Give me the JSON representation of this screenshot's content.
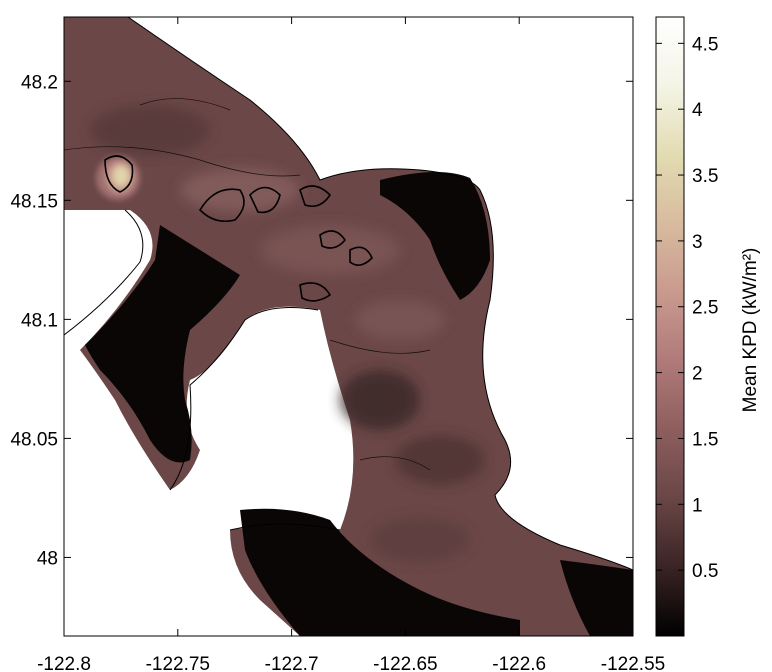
{
  "chart_data": {
    "type": "heatmap",
    "title": "",
    "xlabel": "",
    "ylabel": "",
    "xlim": [
      -122.8,
      -122.55
    ],
    "ylim": [
      47.967,
      48.227
    ],
    "x_ticks": [
      -122.8,
      -122.75,
      -122.7,
      -122.65,
      -122.6,
      -122.55
    ],
    "x_tick_labels": [
      "-122.8",
      "-122.75",
      "-122.7",
      "-122.65",
      "-122.6",
      "-122.55"
    ],
    "y_ticks": [
      48.0,
      48.05,
      48.1,
      48.15,
      48.2
    ],
    "y_tick_labels": [
      "48",
      "48.05",
      "48.1",
      "48.15",
      "48.2"
    ],
    "colorbar": {
      "label": "Mean KPD (kW/m²)",
      "range": [
        0,
        4.7
      ],
      "ticks": [
        0.5,
        1,
        1.5,
        2,
        2.5,
        3,
        3.5,
        4,
        4.5
      ],
      "tick_labels": [
        "0.5",
        "1",
        "1.5",
        "2",
        "2.5",
        "3",
        "3.5",
        "4",
        "4.5"
      ],
      "colormap": [
        "#000000",
        "#3a2424",
        "#6a4646",
        "#8e5e5e",
        "#b07a7a",
        "#c99a8e",
        "#d8bb9e",
        "#e2dcb2",
        "#f4f4e6",
        "#ffffff"
      ]
    },
    "land_color": "#ffffff",
    "water_base_color": "#6b4747",
    "grid": false,
    "legend": "none",
    "features": {
      "peak_region": {
        "lon": -122.777,
        "lat": 48.158,
        "value": 4.0
      },
      "low_regions_kpd_below": 0.2
    }
  }
}
